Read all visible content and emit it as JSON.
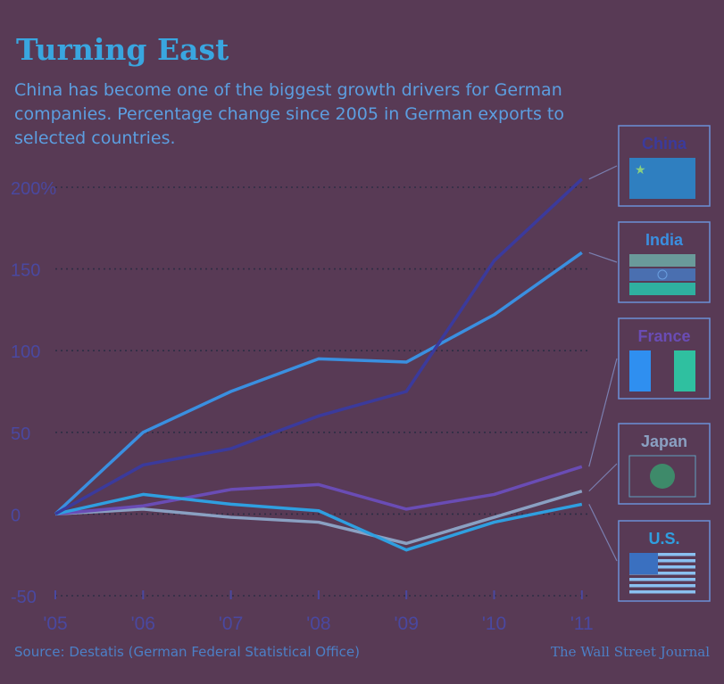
{
  "title": "Turning East",
  "subtitle": "China has become one of the biggest growth drivers for German companies. Percentage change since 2005 in German exports to selected countries.",
  "source": "Source: Destatis (German Federal Statistical Office)",
  "credit": "The Wall Street Journal",
  "colors": {
    "background": "#583a55",
    "grid": "#2d2d44",
    "axis_text": "#4a48a0",
    "china": "#3b3a9c",
    "india": "#3a8fe0",
    "france": "#6a4cb5",
    "japan": "#8aa0c2",
    "us": "#2f9fe0"
  },
  "chart_data": {
    "type": "line",
    "x": [
      "'05",
      "'06",
      "'07",
      "'08",
      "'09",
      "'10",
      "'11"
    ],
    "ylim": [
      -50,
      200
    ],
    "yticks": [
      -50,
      0,
      50,
      100,
      150,
      200
    ],
    "ytick_labels": [
      "-50",
      "0",
      "50",
      "100",
      "150",
      "200%"
    ],
    "grid": true,
    "series": [
      {
        "name": "China",
        "values": [
          0,
          30,
          40,
          60,
          75,
          155,
          205
        ]
      },
      {
        "name": "India",
        "values": [
          0,
          50,
          75,
          95,
          93,
          122,
          160
        ]
      },
      {
        "name": "France",
        "values": [
          0,
          5,
          15,
          18,
          3,
          12,
          29
        ]
      },
      {
        "name": "Japan",
        "values": [
          0,
          3,
          -2,
          -5,
          -18,
          -2,
          14
        ]
      },
      {
        "name": "U.S.",
        "values": [
          0,
          12,
          6,
          2,
          -22,
          -5,
          6
        ]
      }
    ],
    "legend": "right"
  }
}
